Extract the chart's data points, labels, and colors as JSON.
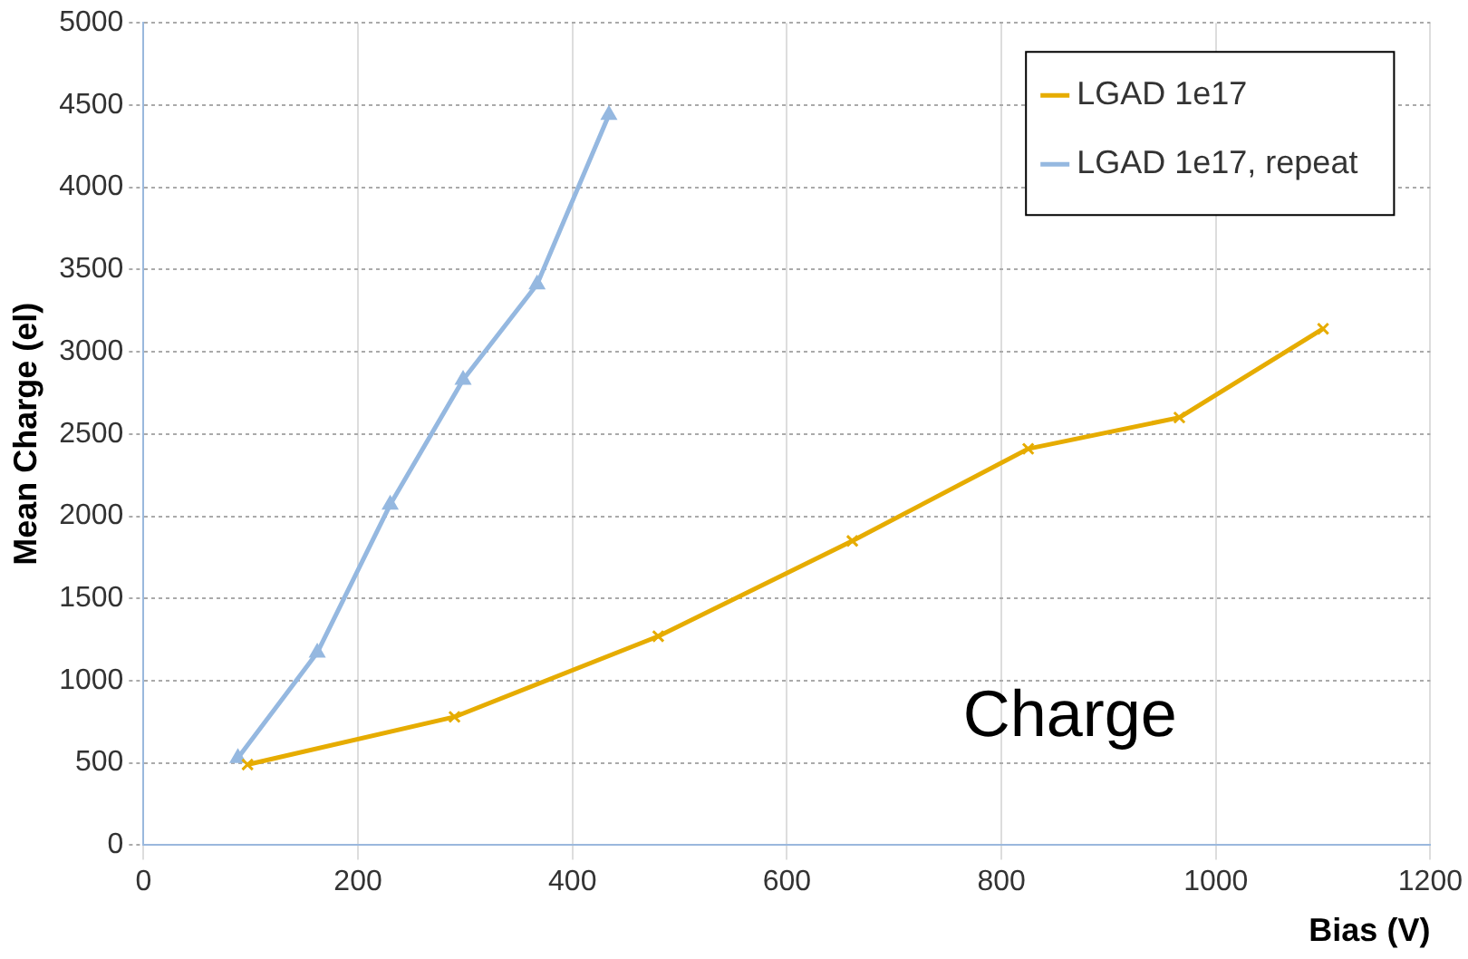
{
  "chart_data": {
    "type": "line",
    "xlabel": "Bias (V)",
    "ylabel": "Mean Charge (el)",
    "xlim": [
      0,
      1200
    ],
    "xticks": [
      0,
      200,
      400,
      600,
      800,
      1000,
      1200
    ],
    "ylim": [
      0,
      5000
    ],
    "yticks": [
      0,
      500,
      1000,
      1500,
      2000,
      2500,
      3000,
      3500,
      4000,
      4500,
      5000
    ],
    "grid": true,
    "legend": "top right",
    "annotations": [
      "Charge"
    ],
    "series": [
      {
        "name": "LGAD 1e17",
        "color": "#e6ac00",
        "marker": "cross",
        "x": [
          97,
          290,
          480,
          661,
          825,
          966,
          1100
        ],
        "values": [
          490,
          780,
          1270,
          1850,
          2410,
          2600,
          3140
        ]
      },
      {
        "name": "LGAD 1e17, repeat",
        "color": "#95b8e0",
        "marker": "triangle",
        "x": [
          88,
          162,
          230,
          298,
          367,
          434
        ],
        "values": [
          530,
          1170,
          2070,
          2830,
          3410,
          4440
        ]
      }
    ]
  }
}
